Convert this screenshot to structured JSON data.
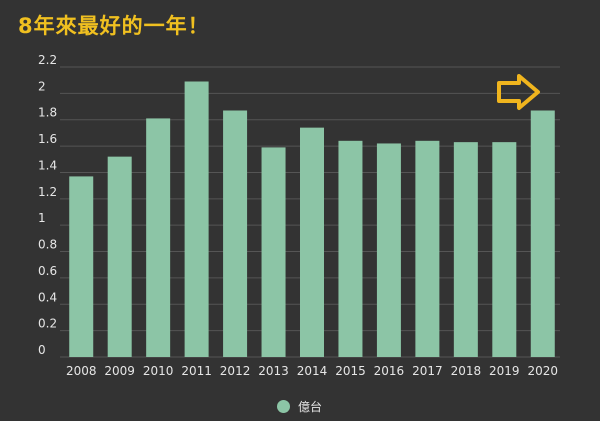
{
  "title": "8年來最好的一年！",
  "colors": {
    "bar": "#8cc5a6",
    "background": "#333333",
    "grid": "#555555",
    "arrow": "#f0b51e",
    "title": "#f0c020"
  },
  "chart_data": {
    "type": "bar",
    "title": "8年來最好的一年！",
    "categories": [
      "2008",
      "2009",
      "2010",
      "2011",
      "2012",
      "2013",
      "2014",
      "2015",
      "2016",
      "2017",
      "2018",
      "2019",
      "2020"
    ],
    "series": [
      {
        "name": "億台",
        "values": [
          1.37,
          1.52,
          1.81,
          2.09,
          1.87,
          1.59,
          1.74,
          1.64,
          1.62,
          1.64,
          1.63,
          1.63,
          1.87
        ]
      }
    ],
    "yticks": [
      "0",
      "0.2",
      "0.4",
      "0.6",
      "0.8",
      "1",
      "1.2",
      "1.4",
      "1.6",
      "1.8",
      "2",
      "2.2"
    ],
    "ylim": [
      0,
      2.2
    ],
    "grid": true,
    "legend_position": "bottom",
    "annotation": "arrow-icon"
  }
}
